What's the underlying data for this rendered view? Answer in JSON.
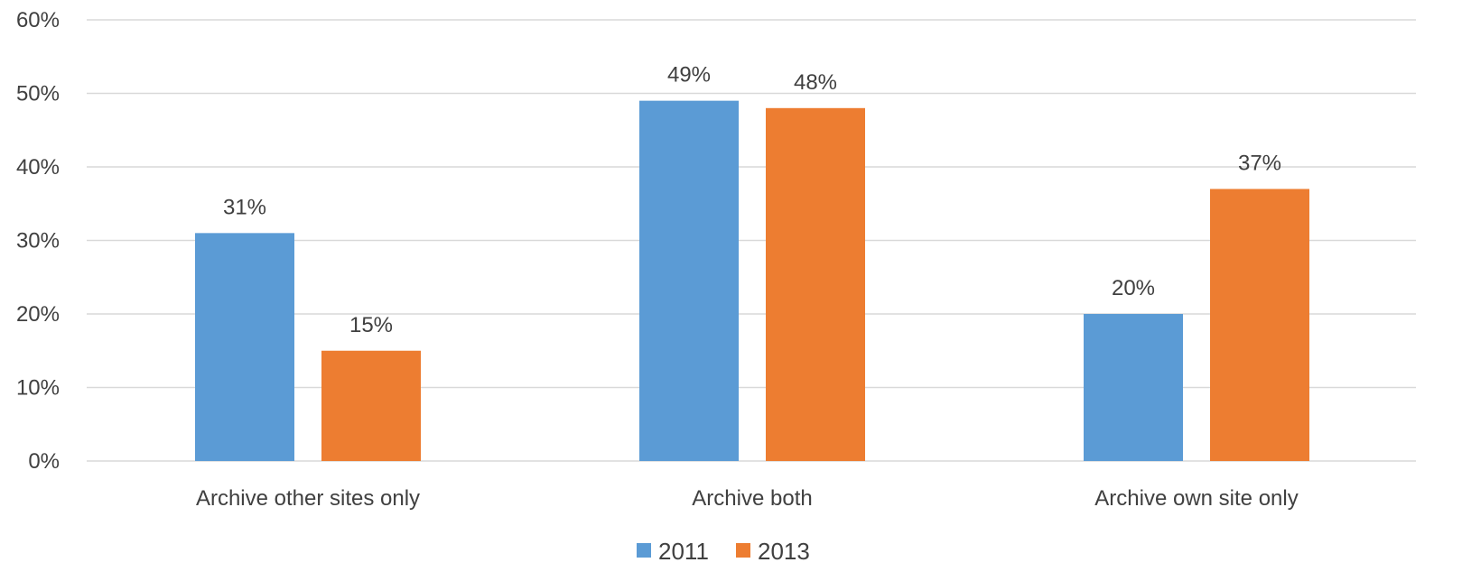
{
  "chart_data": {
    "type": "bar",
    "categories": [
      "Archive other sites only",
      "Archive both",
      "Archive own site only"
    ],
    "series": [
      {
        "name": "2011",
        "values": [
          31,
          49,
          20
        ],
        "labels": [
          "31%",
          "49%",
          "20%"
        ],
        "color": "#5b9bd5"
      },
      {
        "name": "2013",
        "values": [
          15,
          48,
          37
        ],
        "labels": [
          "15%",
          "48%",
          "37%"
        ],
        "color": "#ed7d31"
      }
    ],
    "y_ticks": [
      {
        "value": 0,
        "label": "0%"
      },
      {
        "value": 10,
        "label": "10%"
      },
      {
        "value": 20,
        "label": "20%"
      },
      {
        "value": 30,
        "label": "30%"
      },
      {
        "value": 40,
        "label": "40%"
      },
      {
        "value": 50,
        "label": "50%"
      },
      {
        "value": 60,
        "label": "60%"
      }
    ],
    "ylim": [
      0,
      60
    ],
    "grid": true,
    "legend_position": "bottom",
    "title": "",
    "xlabel": "",
    "ylabel": ""
  }
}
